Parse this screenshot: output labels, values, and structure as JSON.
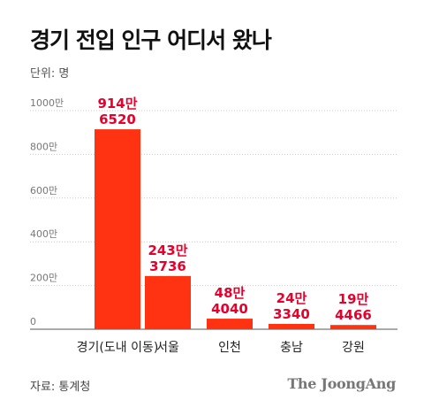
{
  "title": "경기 전입 인구 어디서 왔나",
  "unit": "단위: 명",
  "source": "자료: 통계청",
  "brand": "The JoongAng",
  "colors": {
    "bar": "#ff3311",
    "label": "#e8002d",
    "axis": "#555555",
    "grid": "#cccccc"
  },
  "chart_data": {
    "type": "bar",
    "categories": [
      "경기(도내 이동)",
      "서울",
      "인천",
      "충남",
      "강원"
    ],
    "values": [
      9146520,
      2433736,
      484040,
      243340,
      194466
    ],
    "value_labels": [
      [
        "914만",
        "6520"
      ],
      [
        "243만",
        "3736"
      ],
      [
        "48만",
        "4040"
      ],
      [
        "24만",
        "3340"
      ],
      [
        "19만",
        "4466"
      ]
    ],
    "yticks": [
      "0",
      "200만",
      "400만",
      "600만",
      "800만",
      "1000만"
    ],
    "ytick_values": [
      0,
      2000000,
      4000000,
      6000000,
      8000000,
      10000000
    ],
    "ylim": [
      0,
      10000000
    ],
    "grid": true
  }
}
